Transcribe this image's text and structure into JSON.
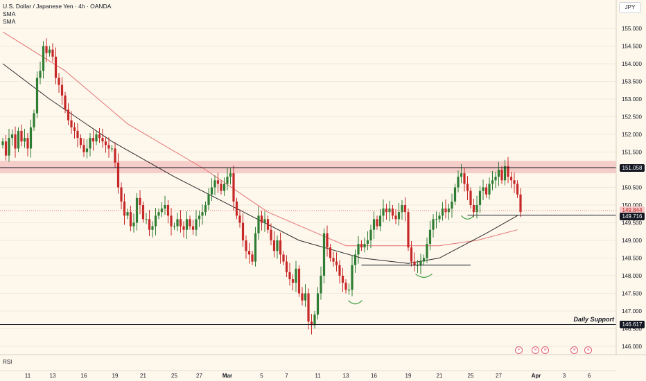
{
  "legend": {
    "title": "U.S. Dollar / Japanese Yen · 4h · OANDA",
    "indicator_1": "SMA",
    "indicator_2": "SMA"
  },
  "currency_button": "JPY",
  "pane_label": "RSI",
  "annotation": "Daily Support",
  "price_tags": {
    "resistance": "151.058",
    "last": "149.844",
    "neckline": "149.716",
    "support": "146.617"
  },
  "colors": {
    "background": "#fdf7ec",
    "up": "#2e7d32",
    "down": "#c62828",
    "resistance_zone": "#f4c7c3",
    "sma_fast": "#2b2b2b",
    "sma_slow": "#e57373",
    "pattern_marks": "#43a047"
  },
  "chart_data": {
    "type": "candlestick",
    "title": "U.S. Dollar / Japanese Yen · 4h · OANDA",
    "ylim": [
      145.8,
      155.4
    ],
    "y_ticks": [
      "155.000",
      "154.500",
      "154.000",
      "153.500",
      "153.000",
      "152.500",
      "152.000",
      "151.500",
      "151.000",
      "150.500",
      "150.000",
      "149.500",
      "149.000",
      "148.500",
      "148.000",
      "147.500",
      "147.000",
      "146.500",
      "146.000"
    ],
    "y_tick_values": [
      155.0,
      154.5,
      154.0,
      153.5,
      153.0,
      152.5,
      152.0,
      151.5,
      151.0,
      150.5,
      150.0,
      149.5,
      149.0,
      148.5,
      148.0,
      147.5,
      147.0,
      146.5,
      146.0
    ],
    "x_ticks": [
      "11",
      "13",
      "16",
      "19",
      "21",
      "25",
      "27",
      "Mar",
      "5",
      "7",
      "11",
      "13",
      "16",
      "19",
      "21",
      "25",
      "27",
      "Apr",
      "3",
      "6"
    ],
    "x_tick_index": [
      8,
      16,
      26,
      36,
      45,
      55,
      63,
      72,
      83,
      91,
      101,
      110,
      119,
      130,
      140,
      150,
      159,
      171,
      180,
      188
    ],
    "resistance_zone": [
      150.9,
      151.25
    ],
    "resistance_line": 151.058,
    "support_line": 146.617,
    "neckline": 149.716,
    "last_price": 149.844,
    "inner_support": 148.3,
    "sma_fast": [
      [
        0,
        154.0
      ],
      [
        15,
        153.0
      ],
      [
        35,
        151.8
      ],
      [
        55,
        150.8
      ],
      [
        75,
        149.9
      ],
      [
        95,
        149.0
      ],
      [
        115,
        148.5
      ],
      [
        130,
        148.35
      ],
      [
        140,
        148.5
      ],
      [
        155,
        149.2
      ],
      [
        165,
        149.7
      ]
    ],
    "sma_slow": [
      [
        0,
        154.9
      ],
      [
        20,
        153.8
      ],
      [
        40,
        152.3
      ],
      [
        65,
        151.0
      ],
      [
        85,
        149.8
      ],
      [
        110,
        148.85
      ],
      [
        125,
        148.85
      ],
      [
        140,
        148.85
      ],
      [
        152,
        149.0
      ],
      [
        165,
        149.3
      ]
    ],
    "closes": [
      151.8,
      151.4,
      151.9,
      152.0,
      151.6,
      152.1,
      151.8,
      151.9,
      151.6,
      152.2,
      152.6,
      153.6,
      153.8,
      154.5,
      154.3,
      154.4,
      154.2,
      153.6,
      153.4,
      153.1,
      152.7,
      152.4,
      152.2,
      152.1,
      151.9,
      151.7,
      151.5,
      151.6,
      151.9,
      151.8,
      152.0,
      151.9,
      151.8,
      151.7,
      151.6,
      151.6,
      151.2,
      150.5,
      150.1,
      149.7,
      149.8,
      149.4,
      149.5,
      150.2,
      150.0,
      149.6,
      149.6,
      149.3,
      149.4,
      149.7,
      149.8,
      149.9,
      150.0,
      149.7,
      149.4,
      149.4,
      149.6,
      149.4,
      149.3,
      149.6,
      149.4,
      149.3,
      149.6,
      149.7,
      149.8,
      150.0,
      150.3,
      150.5,
      150.7,
      150.6,
      150.4,
      150.6,
      150.8,
      150.9,
      150.1,
      149.7,
      149.5,
      149.0,
      148.7,
      148.6,
      148.4,
      149.2,
      149.7,
      149.5,
      149.6,
      149.3,
      149.0,
      148.7,
      149.0,
      148.6,
      148.4,
      148.1,
      147.9,
      147.8,
      148.2,
      147.5,
      147.3,
      147.5,
      146.7,
      146.6,
      146.9,
      147.5,
      148.0,
      149.2,
      148.8,
      148.5,
      148.4,
      148.3,
      148.0,
      147.8,
      147.6,
      147.6,
      148.3,
      148.6,
      148.9,
      148.8,
      148.9,
      149.0,
      149.3,
      149.6,
      149.4,
      149.7,
      149.9,
      149.8,
      149.9,
      149.7,
      149.6,
      149.8,
      150.0,
      149.8,
      148.8,
      148.4,
      148.3,
      148.3,
      148.4,
      148.5,
      148.9,
      149.3,
      149.6,
      149.6,
      149.7,
      149.9,
      149.8,
      149.9,
      150.1,
      150.5,
      150.8,
      150.9,
      150.6,
      150.4,
      150.0,
      149.8,
      150.0,
      150.4,
      150.5,
      150.3,
      150.6,
      150.7,
      150.8,
      151.0,
      150.7,
      151.1,
      150.8,
      150.7,
      150.6,
      150.3,
      149.8
    ],
    "events": [
      "⚡",
      "🇺🇸",
      "🇺🇸",
      "🇺🇸",
      "🇺🇸"
    ]
  }
}
